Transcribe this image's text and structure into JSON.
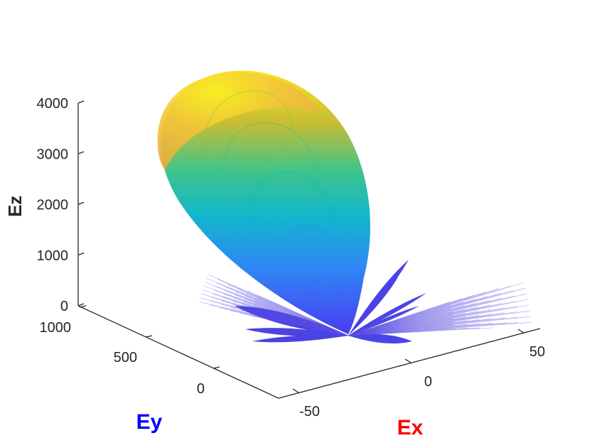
{
  "chart_data": {
    "type": "surface",
    "title": "",
    "xlabel": "Ex",
    "ylabel": "Ey",
    "zlabel": "Ez",
    "xlabel_color": "#ff0000",
    "ylabel_color": "#0000ff",
    "zlabel_color": "#262626",
    "colormap": "parula",
    "x_ticks": [
      -50,
      0,
      50
    ],
    "x_tick_labels": [
      "-50",
      "0",
      "50"
    ],
    "y_ticks": [
      0,
      500,
      1000
    ],
    "y_tick_labels": [
      "0",
      "500",
      "1000"
    ],
    "z_ticks": [
      0,
      1000,
      2000,
      3000,
      4000
    ],
    "z_tick_labels": [
      "0",
      "1000",
      "2000",
      "3000",
      "4000"
    ],
    "xlim": [
      -75,
      75
    ],
    "ylim": [
      0,
      1100
    ],
    "zlim": [
      0,
      4200
    ],
    "grid": false,
    "main_lobe": {
      "z_max": 4000,
      "y_extent": 1000,
      "colors": [
        "#3e26a8",
        "#4456f1",
        "#2f8bf9",
        "#12b6cc",
        "#3ec48a",
        "#a2c12d",
        "#f0b73a",
        "#f8f023"
      ]
    },
    "side_lobes": "many narrow low-level lobes spread in the Ex-Ey plane near the origin"
  }
}
